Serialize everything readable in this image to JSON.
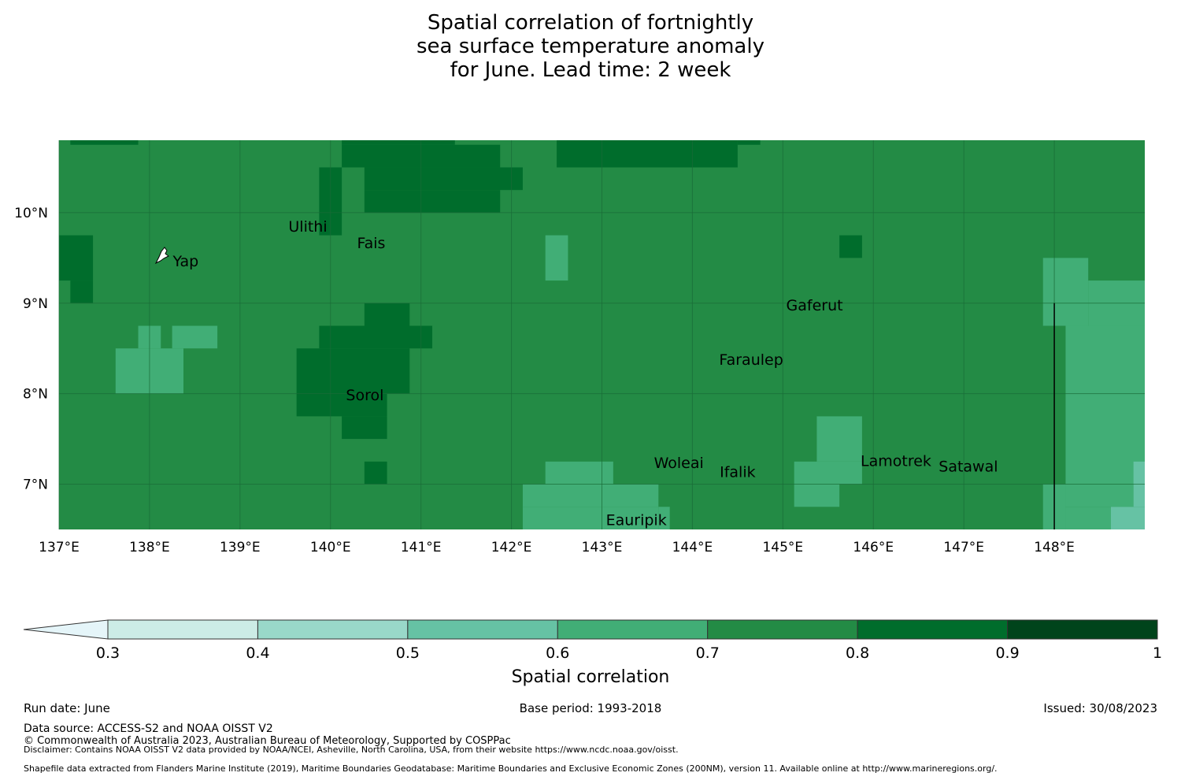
{
  "title": {
    "line1": "Spatial correlation of fortnightly",
    "line2": "sea surface temperature anomaly",
    "line3": "for June. Lead time: 2 week"
  },
  "colors": {
    "lt_0_3": "#e5f5f9",
    "c_0_3_0_4": "#ccece6",
    "c_0_4_0_5": "#99d8c9",
    "c_0_5_0_6": "#66c2a4",
    "c_0_6_0_7": "#41ae76",
    "c_0_7_0_8": "#238b45",
    "c_0_8_0_9": "#006d2c",
    "c_0_9_1": "#00441b",
    "gridline": "#1a6b38",
    "border": "#000000"
  },
  "map": {
    "x_ticks": [
      "137°E",
      "138°E",
      "139°E",
      "140°E",
      "141°E",
      "142°E",
      "143°E",
      "144°E",
      "145°E",
      "146°E",
      "147°E",
      "148°E"
    ],
    "x_tick_values": [
      137,
      138,
      139,
      140,
      141,
      142,
      143,
      144,
      145,
      146,
      147,
      148
    ],
    "y_ticks": [
      "10°N",
      "9°N",
      "8°N",
      "7°N"
    ],
    "y_tick_values": [
      10,
      9,
      8,
      7
    ],
    "lon_range": [
      137,
      149
    ],
    "lat_range": [
      6.5,
      10.8
    ],
    "background_class": "0.7-0.8",
    "cells": [
      {
        "lon0": 137.125,
        "lon1": 137.875,
        "lat0": 10.75,
        "lat1": 10.8,
        "class": "0.8-0.9"
      },
      {
        "lon0": 140.125,
        "lon1": 141.375,
        "lat0": 10.75,
        "lat1": 10.8,
        "class": "0.8-0.9"
      },
      {
        "lon0": 140.125,
        "lon1": 141.875,
        "lat0": 10.5,
        "lat1": 10.75,
        "class": "0.8-0.9"
      },
      {
        "lon0": 140.375,
        "lon1": 142.125,
        "lat0": 10.25,
        "lat1": 10.5,
        "class": "0.8-0.9"
      },
      {
        "lon0": 140.375,
        "lon1": 141.875,
        "lat0": 10.0,
        "lat1": 10.25,
        "class": "0.8-0.9"
      },
      {
        "lon0": 139.875,
        "lon1": 140.125,
        "lat0": 9.75,
        "lat1": 10.5,
        "class": "0.8-0.9"
      },
      {
        "lon0": 142.5,
        "lon1": 144.5,
        "lat0": 10.5,
        "lat1": 10.8,
        "class": "0.8-0.9"
      },
      {
        "lon0": 144.5,
        "lon1": 144.75,
        "lat0": 10.75,
        "lat1": 10.8,
        "class": "0.8-0.9"
      },
      {
        "lon0": 137.0,
        "lon1": 137.375,
        "lat0": 9.25,
        "lat1": 9.75,
        "class": "0.8-0.9"
      },
      {
        "lon0": 137.125,
        "lon1": 137.375,
        "lat0": 9.0,
        "lat1": 9.25,
        "class": "0.8-0.9"
      },
      {
        "lon0": 145.625,
        "lon1": 145.875,
        "lat0": 9.5,
        "lat1": 9.75,
        "class": "0.8-0.9"
      },
      {
        "lon0": 140.375,
        "lon1": 140.875,
        "lat0": 8.75,
        "lat1": 9.0,
        "class": "0.8-0.9"
      },
      {
        "lon0": 139.875,
        "lon1": 141.125,
        "lat0": 8.5,
        "lat1": 8.75,
        "class": "0.8-0.9"
      },
      {
        "lon0": 139.625,
        "lon1": 140.875,
        "lat0": 8.0,
        "lat1": 8.5,
        "class": "0.8-0.9"
      },
      {
        "lon0": 139.625,
        "lon1": 140.625,
        "lat0": 7.75,
        "lat1": 8.0,
        "class": "0.8-0.9"
      },
      {
        "lon0": 140.125,
        "lon1": 140.625,
        "lat0": 7.5,
        "lat1": 7.75,
        "class": "0.8-0.9"
      },
      {
        "lon0": 140.375,
        "lon1": 140.625,
        "lat0": 7.0,
        "lat1": 7.25,
        "class": "0.8-0.9"
      },
      {
        "lon0": 142.375,
        "lon1": 142.625,
        "lat0": 9.25,
        "lat1": 9.75,
        "class": "0.6-0.7"
      },
      {
        "lon0": 138.75,
        "lon1": 138.25,
        "lat0": 8.5,
        "lat1": 8.75,
        "class": "0.6-0.7"
      },
      {
        "lon0": 137.625,
        "lon1": 138.375,
        "lat0": 8.0,
        "lat1": 8.5,
        "class": "0.6-0.7"
      },
      {
        "lon0": 137.875,
        "lon1": 138.125,
        "lat0": 8.5,
        "lat1": 8.75,
        "class": "0.6-0.7"
      },
      {
        "lon0": 142.375,
        "lon1": 143.125,
        "lat0": 7.0,
        "lat1": 7.25,
        "class": "0.6-0.7"
      },
      {
        "lon0": 142.125,
        "lon1": 143.625,
        "lat0": 6.75,
        "lat1": 7.0,
        "class": "0.6-0.7"
      },
      {
        "lon0": 142.125,
        "lon1": 143.625,
        "lat0": 6.5,
        "lat1": 6.75,
        "class": "0.6-0.7"
      },
      {
        "lon0": 143.625,
        "lon1": 143.75,
        "lat0": 6.5,
        "lat1": 6.75,
        "class": "0.6-0.7"
      },
      {
        "lon0": 145.375,
        "lon1": 145.875,
        "lat0": 7.25,
        "lat1": 7.75,
        "class": "0.6-0.7"
      },
      {
        "lon0": 145.125,
        "lon1": 145.875,
        "lat0": 7.0,
        "lat1": 7.25,
        "class": "0.6-0.7"
      },
      {
        "lon0": 145.125,
        "lon1": 145.625,
        "lat0": 6.75,
        "lat1": 7.0,
        "class": "0.6-0.7"
      },
      {
        "lon0": 147.875,
        "lon1": 148.375,
        "lat0": 8.75,
        "lat1": 9.5,
        "class": "0.6-0.7"
      },
      {
        "lon0": 148.375,
        "lon1": 149.0,
        "lat0": 8.75,
        "lat1": 9.25,
        "class": "0.6-0.7"
      },
      {
        "lon0": 148.125,
        "lon1": 149.0,
        "lat0": 7.0,
        "lat1": 8.75,
        "class": "0.6-0.7"
      },
      {
        "lon0": 147.875,
        "lon1": 148.125,
        "lat0": 6.5,
        "lat1": 7.0,
        "class": "0.6-0.7"
      },
      {
        "lon0": 148.125,
        "lon1": 148.875,
        "lat0": 6.75,
        "lat1": 7.0,
        "class": "0.6-0.7"
      },
      {
        "lon0": 148.125,
        "lon1": 148.625,
        "lat0": 6.5,
        "lat1": 6.75,
        "class": "0.6-0.7"
      },
      {
        "lon0": 148.875,
        "lon1": 149.0,
        "lat0": 6.75,
        "lat1": 7.25,
        "class": "0.5-0.6"
      },
      {
        "lon0": 148.625,
        "lon1": 149.0,
        "lat0": 6.5,
        "lat1": 6.75,
        "class": "0.5-0.6"
      }
    ],
    "places": [
      {
        "name": "Ulithi",
        "lon": 139.75,
        "lat": 9.85
      },
      {
        "name": "Fais",
        "lon": 140.45,
        "lat": 9.67
      },
      {
        "name": "Yap",
        "lon": 138.4,
        "lat": 9.47
      },
      {
        "name": "Gaferut",
        "lon": 145.35,
        "lat": 8.98
      },
      {
        "name": "Faraulep",
        "lon": 144.65,
        "lat": 8.38
      },
      {
        "name": "Sorol",
        "lon": 140.38,
        "lat": 7.99
      },
      {
        "name": "Woleai",
        "lon": 143.85,
        "lat": 7.24
      },
      {
        "name": "Ifalik",
        "lon": 144.5,
        "lat": 7.14
      },
      {
        "name": "Lamotrek",
        "lon": 146.25,
        "lat": 7.26
      },
      {
        "name": "Satawal",
        "lon": 147.05,
        "lat": 7.2
      },
      {
        "name": "Eauripik",
        "lon": 143.38,
        "lat": 6.61
      }
    ],
    "boundary_line": {
      "lon": 148.0,
      "lat0": 6.5,
      "lat1": 9.0
    }
  },
  "colorbar": {
    "ticks": [
      "0.3",
      "0.4",
      "0.5",
      "0.6",
      "0.7",
      "0.8",
      "0.9",
      "1"
    ],
    "tick_values": [
      0.3,
      0.4,
      0.5,
      0.6,
      0.7,
      0.8,
      0.9,
      1.0
    ],
    "label": "Spatial correlation",
    "extend": "min"
  },
  "footer": {
    "run_date": "Run date: June",
    "base_period": "Base period: 1993-2018",
    "issued": "Issued: 30/08/2023",
    "data_source": "Data source: ACCESS-S2 and NOAA OISST V2",
    "copyright": "© Commonwealth of Australia 2023, Australian Bureau of Meteorology, Supported by COSPPac",
    "disclaimer": "Disclaimer: Contains NOAA OISST V2 data provided by NOAA/NCEI, Asheville, North Carolina, USA, from their website https://www.ncdc.noaa.gov/oisst.",
    "shapefile": "Shapefile data extracted from Flanders Marine Institute (2019), Maritime Boundaries Geodatabase: Maritime Boundaries and Exclusive Economic Zones (200NM), version 11. Available online at http://www.marineregions.org/."
  }
}
